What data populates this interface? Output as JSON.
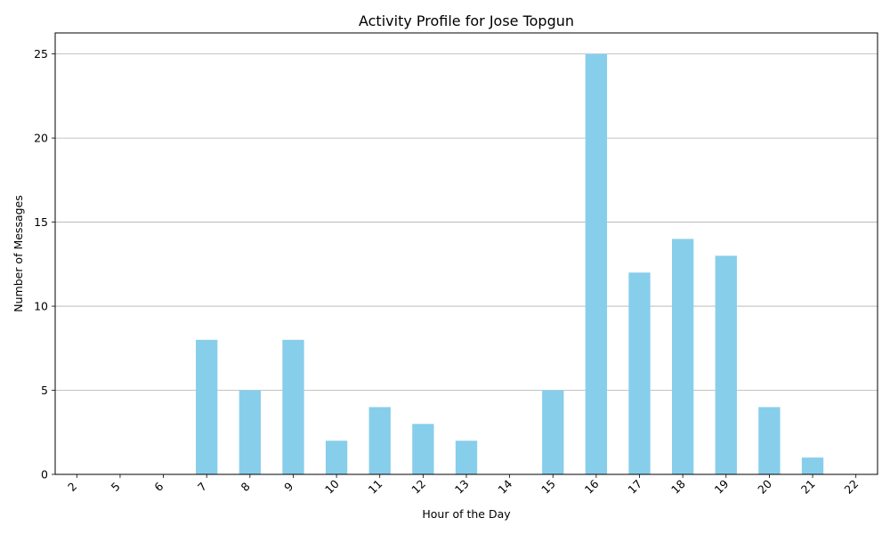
{
  "chart_data": {
    "type": "bar",
    "title": "Activity Profile for Jose Topgun",
    "xlabel": "Hour of the Day",
    "ylabel": "Number of Messages",
    "categories": [
      "2",
      "5",
      "6",
      "7",
      "8",
      "9",
      "10",
      "11",
      "12",
      "13",
      "14",
      "15",
      "16",
      "17",
      "18",
      "19",
      "20",
      "21",
      "22"
    ],
    "values": [
      0,
      0,
      0,
      8,
      5,
      8,
      2,
      4,
      3,
      2,
      0,
      5,
      25,
      12,
      14,
      13,
      4,
      1,
      0
    ],
    "ylim": [
      0,
      26.25
    ],
    "yticks": [
      0,
      5,
      10,
      15,
      20,
      25
    ],
    "grid": "y-axis only",
    "bar_color": "#87CEEB",
    "x_tick_rotation": "45 degrees"
  }
}
